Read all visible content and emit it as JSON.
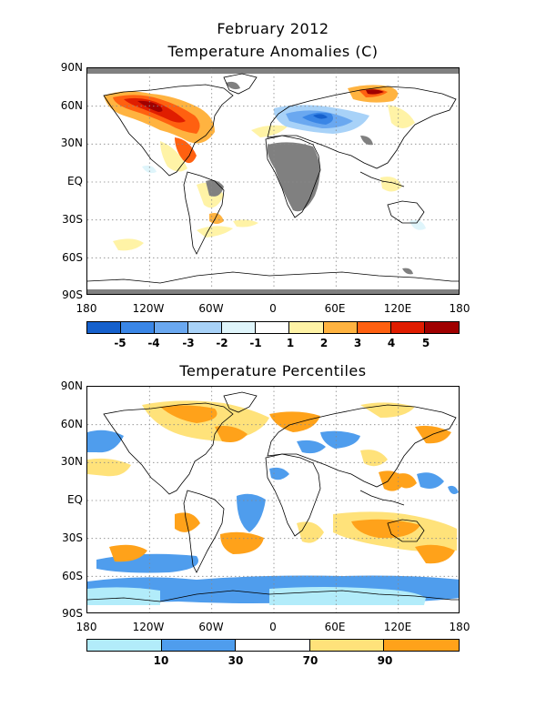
{
  "header": {
    "title": "February 2012",
    "anomaly_subtitle": "Temperature Anomalies (C)",
    "percentile_subtitle": "Temperature Percentiles"
  },
  "axes": {
    "lat_labels": [
      "90N",
      "60N",
      "30N",
      "EQ",
      "30S",
      "60S",
      "90S"
    ],
    "lon_labels": [
      "180",
      "120W",
      "60W",
      "0",
      "60E",
      "120E",
      "180"
    ]
  },
  "colors": {
    "land": "#7a7a7a",
    "coast": "#000000",
    "grid": "#888888",
    "nodata": "#808080"
  },
  "anomaly_legend": {
    "labels": [
      "-5",
      "-4",
      "-3",
      "-2",
      "-1",
      "1",
      "2",
      "3",
      "4",
      "5"
    ],
    "colors": [
      "#1560cc",
      "#3a86e6",
      "#6aa8f0",
      "#a8d2f8",
      "#dff5fb",
      "#ffffff",
      "#fff3a6",
      "#ffb340",
      "#ff6010",
      "#e01d00",
      "#a00000"
    ]
  },
  "percentile_legend": {
    "labels": [
      "10",
      "30",
      "70",
      "90"
    ],
    "colors": [
      "#b2ecfa",
      "#4f9ded",
      "#ffffff",
      "#ffe27a",
      "#ffa21a"
    ]
  }
}
